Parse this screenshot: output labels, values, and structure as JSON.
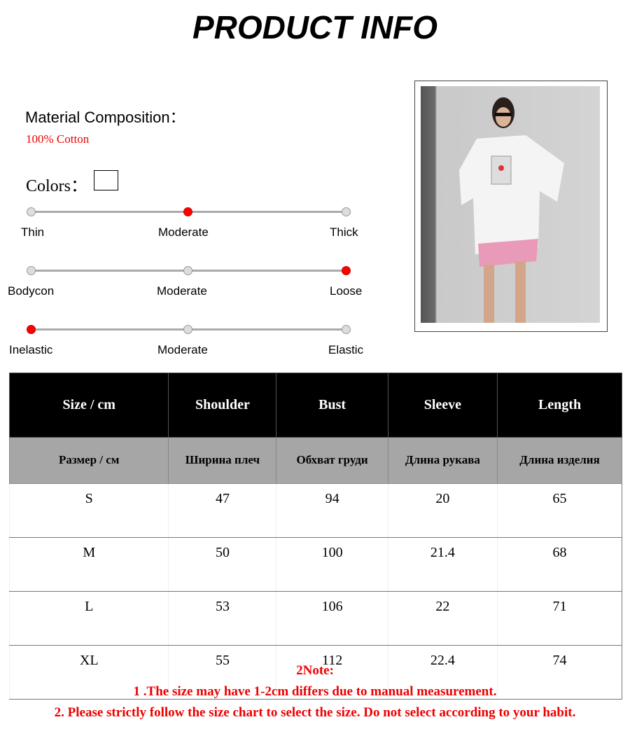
{
  "title": "PRODUCT INFO",
  "material": {
    "label": "Material Composition：",
    "value": "100% Cotton"
  },
  "colors": {
    "label": "Colors：",
    "swatches": [
      "#ffffff"
    ]
  },
  "scales": [
    {
      "labels": [
        "Thin",
        "Moderate",
        "Thick"
      ],
      "selected": 1
    },
    {
      "labels": [
        "Bodycon",
        "Moderate",
        "Loose"
      ],
      "selected": 2
    },
    {
      "labels": [
        "Inelastic",
        "Moderate",
        "Elastic"
      ],
      "selected": 0
    }
  ],
  "table": {
    "headers": [
      "Size / cm",
      "Shoulder",
      "Bust",
      "Sleeve",
      "Length"
    ],
    "headers_ru": [
      "Размер / см",
      "Ширина плеч",
      "Обхват груди",
      "Длина рукава",
      "Длина изделия"
    ],
    "rows": [
      [
        "S",
        "47",
        "94",
        "20",
        "65"
      ],
      [
        "M",
        "50",
        "100",
        "21.4",
        "68"
      ],
      [
        "L",
        "53",
        "106",
        "22",
        "71"
      ],
      [
        "XL",
        "55",
        "112",
        "22.4",
        "74"
      ]
    ]
  },
  "notes": [
    "2Note:",
    "1 .The size may have 1-2cm differs due to manual measurement.",
    "2. Please strictly follow the size chart to select the size. Do not select according to your habit."
  ]
}
